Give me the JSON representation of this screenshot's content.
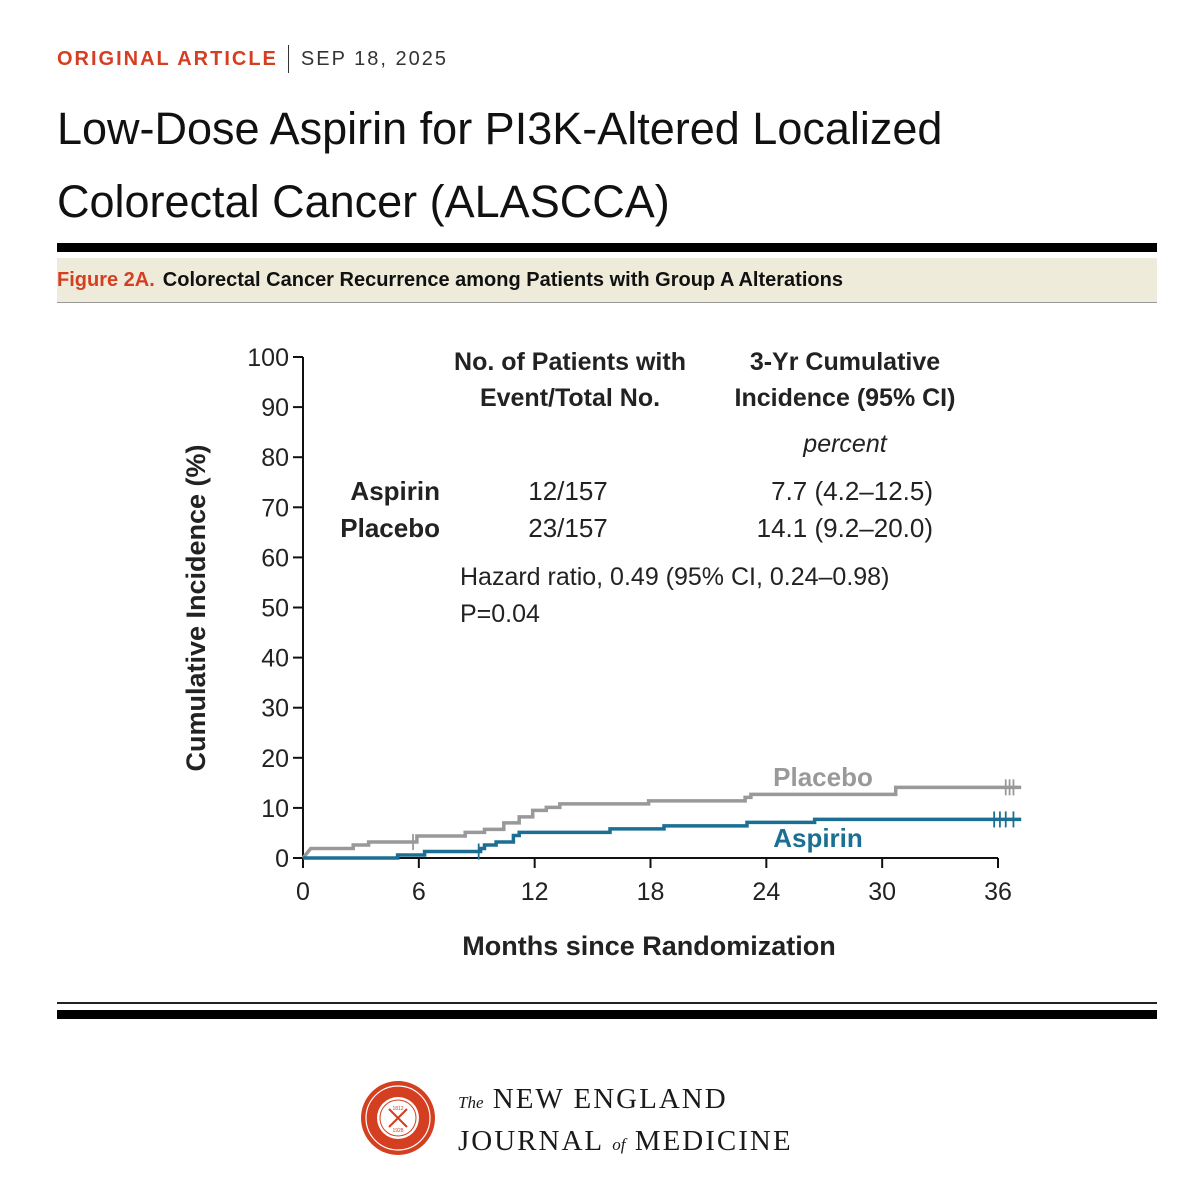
{
  "header": {
    "article_type": "ORIGINAL ARTICLE",
    "date": "SEP 18, 2025",
    "title_line1": "Low-Dose Aspirin for PI3K-Altered Localized",
    "title_line2": "Colorectal Cancer (ALASCCA)"
  },
  "figure": {
    "label": "Figure 2A.",
    "caption": "Colorectal Cancer Recurrence among Patients with Group A Alterations"
  },
  "colors": {
    "aspirin": "#1b6f93",
    "placebo": "#999999",
    "accent": "#d43f22"
  },
  "table": {
    "col1_header_line1": "No. of Patients with",
    "col1_header_line2": "Event/Total No.",
    "col2_header_line1": "3-Yr Cumulative",
    "col2_header_line2": "Incidence (95% CI)",
    "unit": "percent",
    "rows": [
      {
        "group": "Aspirin",
        "events": "12/157",
        "incidence": "7.7 (4.2–12.5)"
      },
      {
        "group": "Placebo",
        "events": "23/157",
        "incidence": "14.1 (9.2–20.0)"
      }
    ],
    "hazard_ratio": "Hazard ratio, 0.49 (95% CI, 0.24–0.98)",
    "p_value": "P=0.04"
  },
  "chart_data": {
    "type": "line",
    "title": "Colorectal Cancer Recurrence among Patients with Group A Alterations",
    "xlabel": "Months since Randomization",
    "ylabel": "Cumulative Incidence (%)",
    "xlim": [
      0,
      36
    ],
    "ylim": [
      0,
      100
    ],
    "xticks": [
      0,
      6,
      12,
      18,
      24,
      30,
      36
    ],
    "yticks": [
      0,
      10,
      20,
      30,
      40,
      50,
      60,
      70,
      80,
      90,
      100
    ],
    "step": true,
    "series": [
      {
        "name": "Placebo",
        "color": "#999999",
        "points": [
          [
            0,
            0
          ],
          [
            0.4,
            1.9
          ],
          [
            2.6,
            1.9
          ],
          [
            2.6,
            2.6
          ],
          [
            3.4,
            2.6
          ],
          [
            3.4,
            3.2
          ],
          [
            5.9,
            3.2
          ],
          [
            5.9,
            4.4
          ],
          [
            8.4,
            4.4
          ],
          [
            8.4,
            5.1
          ],
          [
            9.4,
            5.1
          ],
          [
            9.4,
            5.7
          ],
          [
            10.4,
            5.7
          ],
          [
            10.4,
            7.0
          ],
          [
            11.2,
            7.0
          ],
          [
            11.2,
            8.2
          ],
          [
            11.9,
            8.2
          ],
          [
            11.9,
            9.5
          ],
          [
            12.6,
            9.5
          ],
          [
            12.6,
            10.1
          ],
          [
            13.3,
            10.1
          ],
          [
            13.3,
            10.8
          ],
          [
            17.9,
            10.8
          ],
          [
            17.9,
            11.4
          ],
          [
            22.9,
            11.4
          ],
          [
            22.9,
            12.1
          ],
          [
            23.2,
            12.1
          ],
          [
            23.2,
            12.7
          ],
          [
            30.7,
            12.7
          ],
          [
            30.7,
            14.1
          ],
          [
            37.2,
            14.1
          ]
        ],
        "censor_x": [
          5.7,
          36.4,
          36.6,
          36.8
        ]
      },
      {
        "name": "Aspirin",
        "color": "#1b6f93",
        "points": [
          [
            0,
            0
          ],
          [
            4.9,
            0
          ],
          [
            4.9,
            0.6
          ],
          [
            6.3,
            0.6
          ],
          [
            6.3,
            1.3
          ],
          [
            9.2,
            1.3
          ],
          [
            9.2,
            1.9
          ],
          [
            9.4,
            1.9
          ],
          [
            9.4,
            2.6
          ],
          [
            10.0,
            2.6
          ],
          [
            10.0,
            3.2
          ],
          [
            10.9,
            3.2
          ],
          [
            10.9,
            4.5
          ],
          [
            11.2,
            4.5
          ],
          [
            11.2,
            5.1
          ],
          [
            15.9,
            5.1
          ],
          [
            15.9,
            5.8
          ],
          [
            18.7,
            5.8
          ],
          [
            18.7,
            6.4
          ],
          [
            23.0,
            6.4
          ],
          [
            23.0,
            7.1
          ],
          [
            26.5,
            7.1
          ],
          [
            26.5,
            7.7
          ],
          [
            37.2,
            7.7
          ]
        ],
        "censor_x": [
          9.1,
          35.8,
          36.1,
          36.4,
          36.8
        ]
      }
    ],
    "curve_labels": {
      "placebo": "Placebo",
      "aspirin": "Aspirin"
    }
  },
  "footer": {
    "journal_the": "The",
    "journal_line1": "NEW ENGLAND",
    "journal_line2": "JOURNAL",
    "journal_of": "of",
    "journal_line2b": "MEDICINE"
  }
}
